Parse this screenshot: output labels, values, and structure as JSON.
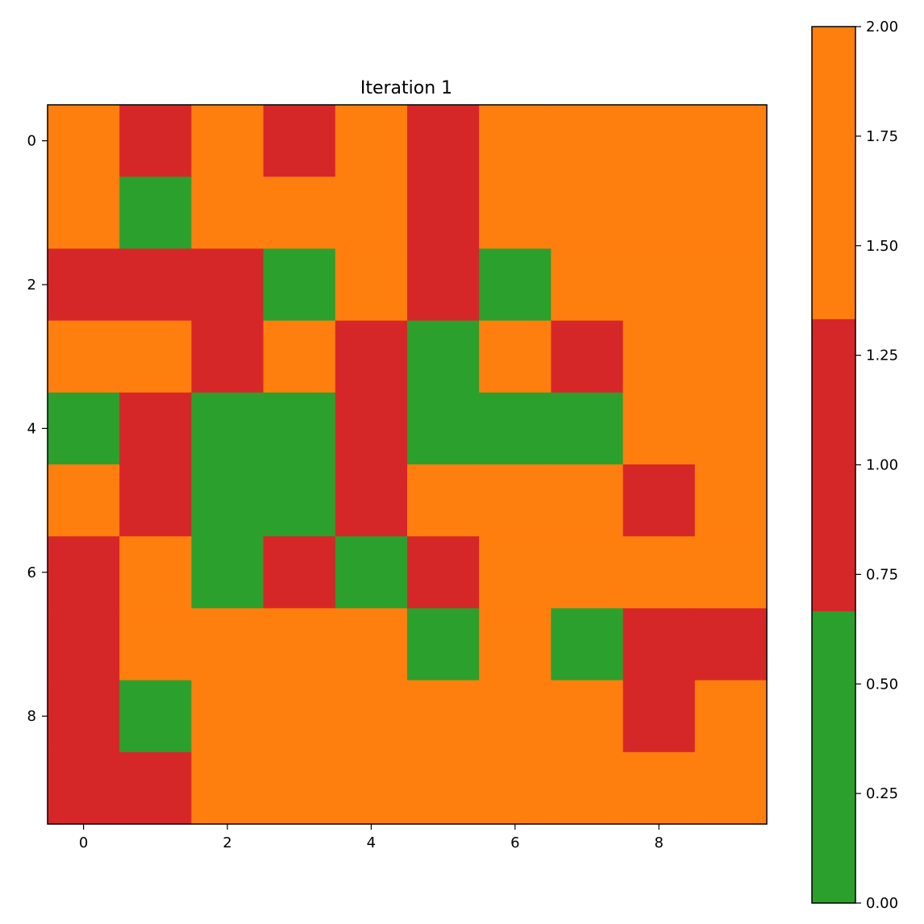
{
  "chart_data": [
    {
      "type": "heatmap",
      "title": "Iteration 1",
      "xlabel": "",
      "ylabel": "",
      "x_ticks": [
        0,
        2,
        4,
        6,
        8
      ],
      "y_ticks": [
        0,
        2,
        4,
        6,
        8
      ],
      "x_tick_labels": [
        "0",
        "2",
        "4",
        "6",
        "8"
      ],
      "y_tick_labels": [
        "0",
        "2",
        "4",
        "6",
        "8"
      ],
      "xlim": [
        -0.5,
        9.5
      ],
      "ylim": [
        9.5,
        -0.5
      ],
      "grid": false,
      "matrix": [
        [
          2,
          1,
          2,
          1,
          2,
          1,
          2,
          2,
          2,
          2
        ],
        [
          2,
          0,
          2,
          2,
          2,
          1,
          2,
          2,
          2,
          2
        ],
        [
          1,
          1,
          1,
          0,
          2,
          1,
          0,
          2,
          2,
          2
        ],
        [
          2,
          2,
          1,
          2,
          1,
          0,
          2,
          1,
          2,
          2
        ],
        [
          0,
          1,
          0,
          0,
          1,
          0,
          0,
          0,
          2,
          2
        ],
        [
          2,
          1,
          0,
          0,
          1,
          2,
          2,
          2,
          1,
          2
        ],
        [
          1,
          2,
          0,
          1,
          0,
          1,
          2,
          2,
          2,
          2
        ],
        [
          1,
          2,
          2,
          2,
          2,
          0,
          2,
          0,
          1,
          1
        ],
        [
          1,
          0,
          2,
          2,
          2,
          2,
          2,
          2,
          1,
          2
        ],
        [
          1,
          1,
          2,
          2,
          2,
          2,
          2,
          2,
          2,
          2
        ]
      ],
      "colormap": {
        "type": "discrete",
        "colors": [
          "#2ca02c",
          "#d62728",
          "#ff7f0e"
        ],
        "vmin": 0,
        "vmax": 2
      },
      "colorbar": {
        "range": [
          0,
          2
        ],
        "ticks": [
          0.0,
          0.25,
          0.5,
          0.75,
          1.0,
          1.25,
          1.5,
          1.75,
          2.0
        ],
        "tick_labels": [
          "0.00",
          "0.25",
          "0.50",
          "0.75",
          "1.00",
          "1.25",
          "1.50",
          "1.75",
          "2.00"
        ],
        "placement": "right"
      }
    }
  ]
}
